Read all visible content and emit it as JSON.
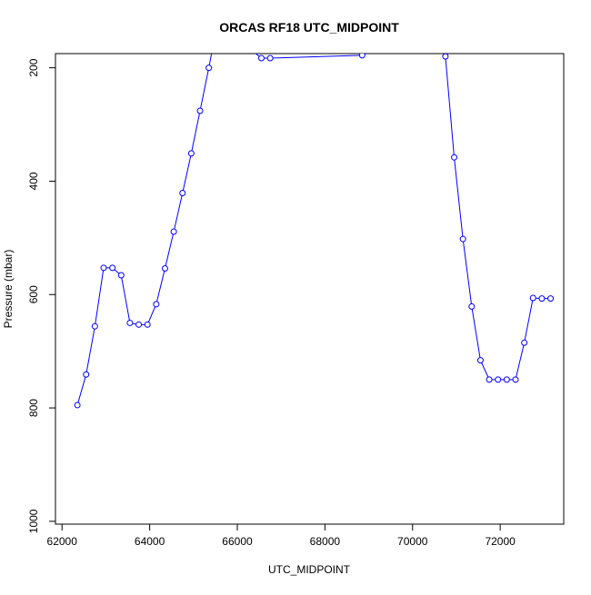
{
  "chart_data": {
    "type": "line",
    "title": "ORCAS RF18 UTC_MIDPOINT",
    "xlabel": "UTC_MIDPOINT",
    "ylabel": "Pressure (mbar)",
    "xlim": [
      61850,
      73450
    ],
    "ylim": [
      1005,
      175
    ],
    "y_axis_reversed": true,
    "grid": false,
    "legend": "none",
    "x_ticks": [
      {
        "value": 62000,
        "label": "62000"
      },
      {
        "value": 64000,
        "label": "64000"
      },
      {
        "value": 66000,
        "label": "66000"
      },
      {
        "value": 68000,
        "label": "68000"
      },
      {
        "value": 70000,
        "label": "70000"
      },
      {
        "value": 72000,
        "label": "72000"
      }
    ],
    "y_ticks": [
      {
        "value": 200,
        "label": "200"
      },
      {
        "value": 400,
        "label": "400"
      },
      {
        "value": 600,
        "label": "600"
      },
      {
        "value": 800,
        "label": "800"
      },
      {
        "value": 1000,
        "label": "1000"
      }
    ],
    "series": [
      {
        "color": "#0000ff",
        "marker": "open-circle",
        "points": [
          {
            "x": 62350,
            "y": 795
          },
          {
            "x": 62550,
            "y": 741
          },
          {
            "x": 62750,
            "y": 656
          },
          {
            "x": 62950,
            "y": 553
          },
          {
            "x": 63150,
            "y": 553
          },
          {
            "x": 63350,
            "y": 566
          },
          {
            "x": 63550,
            "y": 650
          },
          {
            "x": 63750,
            "y": 653
          },
          {
            "x": 63950,
            "y": 653
          },
          {
            "x": 64150,
            "y": 617
          },
          {
            "x": 64350,
            "y": 554
          },
          {
            "x": 64550,
            "y": 489
          },
          {
            "x": 64750,
            "y": 421
          },
          {
            "x": 64950,
            "y": 351
          },
          {
            "x": 65150,
            "y": 276
          },
          {
            "x": 65350,
            "y": 200
          },
          {
            "x": 65550,
            "y": 120
          },
          {
            "x": 66550,
            "y": 183
          },
          {
            "x": 66750,
            "y": 183
          },
          {
            "x": 68850,
            "y": 178
          },
          {
            "x": 70550,
            "y": 120
          },
          {
            "x": 70750,
            "y": 180
          },
          {
            "x": 70950,
            "y": 358
          },
          {
            "x": 71150,
            "y": 502
          },
          {
            "x": 71350,
            "y": 621
          },
          {
            "x": 71550,
            "y": 716
          },
          {
            "x": 71750,
            "y": 750
          },
          {
            "x": 71950,
            "y": 750
          },
          {
            "x": 72150,
            "y": 750
          },
          {
            "x": 72350,
            "y": 750
          },
          {
            "x": 72550,
            "y": 685
          },
          {
            "x": 72750,
            "y": 606
          },
          {
            "x": 72950,
            "y": 607
          },
          {
            "x": 73150,
            "y": 607
          }
        ]
      }
    ]
  }
}
